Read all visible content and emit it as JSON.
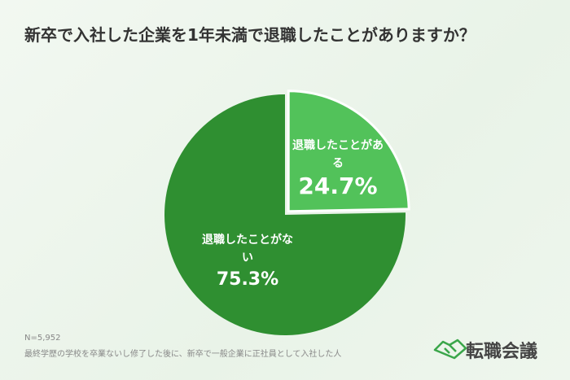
{
  "chart_data": {
    "type": "pie",
    "title": "新卒で入社した企業を1年未満で退職したことがありますか？",
    "categories": [
      "退職したことがある",
      "退職したことがない"
    ],
    "values": [
      24.7,
      75.3
    ],
    "value_labels": [
      "24.7%",
      "75.3%"
    ],
    "colors": [
      "#52c25a",
      "#2f8f31"
    ],
    "sample_note": "N=5,952",
    "footnote": "最終学歴の学校を卒業ないし修了した後に、新卒で一般企業に正社員として入社した人"
  },
  "logo": "転職会議"
}
